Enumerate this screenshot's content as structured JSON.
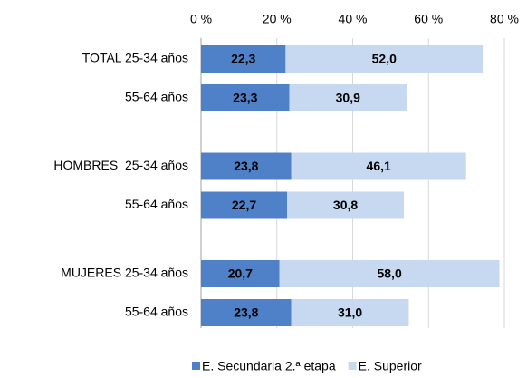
{
  "chart_data": {
    "type": "stacked-bar-horizontal",
    "categories": [
      "TOTAL 25-34 años",
      "55-64 años",
      "HOMBRES  25-34 años",
      "55-64 años",
      "MUJERES 25-34 años",
      "55-64 años"
    ],
    "series": [
      {
        "name": "E. Secundaria 2.ª etapa",
        "color": "#4f81c8",
        "values": [
          22.3,
          23.3,
          23.8,
          22.7,
          20.7,
          23.8
        ],
        "value_labels": [
          "22,3",
          "23,3",
          "23,8",
          "22,7",
          "20,7",
          "23,8"
        ]
      },
      {
        "name": "E. Superior",
        "color": "#c6d9f1",
        "values": [
          52.0,
          30.9,
          46.1,
          30.8,
          58.0,
          31.0
        ],
        "value_labels": [
          "52,0",
          "30,9",
          "46,1",
          "30,8",
          "58,0",
          "31,0"
        ]
      }
    ],
    "xlim": [
      0,
      80
    ],
    "xticks": [
      {
        "value": 0,
        "label": "0 %"
      },
      {
        "value": 20,
        "label": "20 %"
      },
      {
        "value": 40,
        "label": "40 %"
      },
      {
        "value": 60,
        "label": "60 %"
      },
      {
        "value": 80,
        "label": "80 %"
      }
    ],
    "grid": true
  }
}
